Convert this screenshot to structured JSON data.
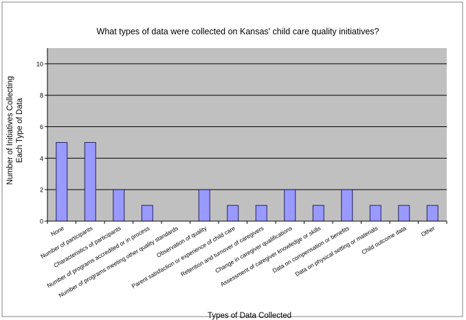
{
  "chart_data": {
    "type": "bar",
    "title": "What types of data were collected on Kansas' child care quality initiatives?",
    "xlabel": "Types of Data Collected",
    "ylabel_lines": [
      "Number of Initiatives Collecting",
      "Each Type of Data"
    ],
    "ylim": [
      0,
      11
    ],
    "yticks": [
      0,
      2,
      4,
      6,
      8,
      10
    ],
    "grid": true,
    "legend": "none",
    "categories": [
      "None",
      "Number of participants",
      "Characteristics of participants",
      "Number of programs accredited or in process",
      "Number of programs meeting other quality standards",
      "Observation of quality",
      "Parent satisfaction or experience of child care",
      "Retention and turnover of caregivers",
      "Change in caregiver qualifications",
      "Assessment of caregiver knowledge or skills",
      "Data on compensation or benefits",
      "Data on physical setting or materials",
      "Child outcome data",
      "Other"
    ],
    "values": [
      5,
      5,
      2,
      1,
      0,
      2,
      1,
      1,
      2,
      1,
      2,
      1,
      1,
      1
    ],
    "colors": {
      "bar_fill": "#9999ff",
      "bar_stroke": "#202060",
      "plot_background": "#c0c0c0",
      "gridline": "#000000",
      "frame": "#808080",
      "text": "#000000"
    }
  }
}
